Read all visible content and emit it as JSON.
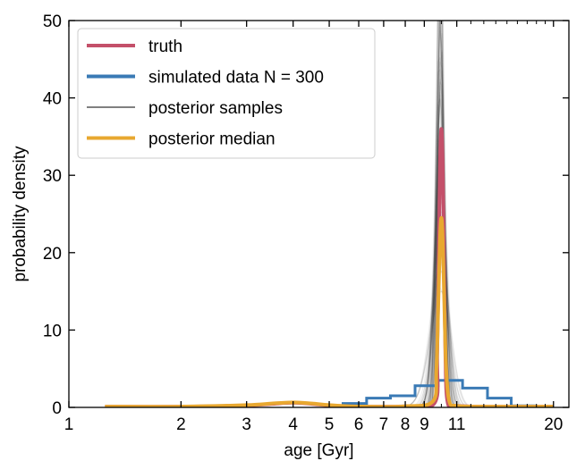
{
  "chart_data": {
    "type": "line",
    "title": "",
    "xlabel": "age [Gyr]",
    "ylabel": "probability density",
    "x_scale": "log",
    "xlim": [
      1,
      22
    ],
    "ylim": [
      0,
      50
    ],
    "x_ticks": [
      1,
      2,
      3,
      4,
      5,
      6,
      7,
      8,
      9,
      11,
      20
    ],
    "x_tick_labels": [
      "1",
      "2",
      "3",
      "4",
      "5",
      "6",
      "7",
      "8",
      "9",
      "11",
      "20"
    ],
    "y_ticks": [
      0,
      10,
      20,
      30,
      40,
      50
    ],
    "y_tick_labels": [
      "0",
      "10",
      "20",
      "30",
      "40",
      "50"
    ],
    "grid": false,
    "legend_position": "top-left",
    "colors": {
      "truth": "#c4506a",
      "simulated": "#3a7ab5",
      "samples": "#000000",
      "median": "#e8a830"
    },
    "legend": [
      {
        "label": "truth",
        "color": "#c4506a"
      },
      {
        "label": "simulated data N = 300",
        "color": "#3a7ab5"
      },
      {
        "label": "posterior samples",
        "color": "#000000"
      },
      {
        "label": "posterior median",
        "color": "#e8a830"
      }
    ],
    "series": [
      {
        "name": "truth",
        "x": [
          1.25,
          2.0,
          3.0,
          3.5,
          4.0,
          4.5,
          5.0,
          6.0,
          8.0,
          9.6,
          9.75,
          9.85,
          9.92,
          10.0,
          10.08,
          10.15,
          10.25,
          10.4,
          11.0,
          13.0,
          20.0
        ],
        "y": [
          0.1,
          0.1,
          0.25,
          0.45,
          0.6,
          0.45,
          0.25,
          0.12,
          0.15,
          0.6,
          7.0,
          22.0,
          32.0,
          36.0,
          32.0,
          22.0,
          7.0,
          0.6,
          0.2,
          0.1,
          0.1
        ]
      },
      {
        "name": "simulated data N = 300",
        "bin_edges": [
          5.4,
          6.3,
          7.3,
          8.5,
          9.8,
          11.4,
          13.3,
          15.4,
          17.9
        ],
        "values": [
          0.5,
          1.2,
          1.5,
          2.8,
          3.5,
          2.5,
          1.2,
          0.2
        ]
      },
      {
        "name": "posterior median",
        "x": [
          1.25,
          2.0,
          3.0,
          3.5,
          4.0,
          4.5,
          5.0,
          6.0,
          8.0,
          9.5,
          9.7,
          9.82,
          9.92,
          10.0,
          10.08,
          10.2,
          10.3,
          10.5,
          11.0,
          13.0,
          20.0
        ],
        "y": [
          0.1,
          0.1,
          0.3,
          0.5,
          0.65,
          0.5,
          0.3,
          0.12,
          0.15,
          0.8,
          5.0,
          14.0,
          22.0,
          24.5,
          22.0,
          12.0,
          5.0,
          0.8,
          0.2,
          0.1,
          0.1
        ]
      }
    ]
  }
}
